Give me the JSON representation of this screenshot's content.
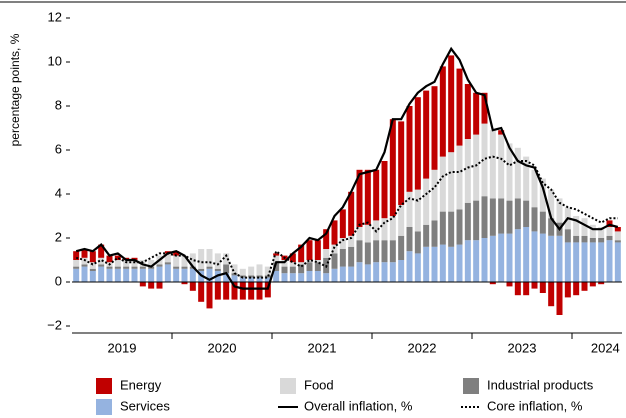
{
  "chart_data": {
    "type": "bar",
    "y_label": "percentage points, %",
    "categories": [
      null,
      null,
      null,
      null,
      null,
      "2019",
      null,
      null,
      null,
      null,
      null,
      null,
      null,
      null,
      null,
      null,
      null,
      "2020",
      null,
      null,
      null,
      null,
      null,
      null,
      null,
      null,
      null,
      null,
      null,
      "2021",
      null,
      null,
      null,
      null,
      null,
      null,
      null,
      null,
      null,
      null,
      null,
      "2022",
      null,
      null,
      null,
      null,
      null,
      null,
      null,
      null,
      null,
      null,
      null,
      "2023",
      null,
      null,
      null,
      null,
      null,
      null,
      null,
      null,
      null,
      "2024",
      null,
      null
    ],
    "ylim": [
      -2,
      12
    ],
    "yticks": [
      {
        "value": -2,
        "label": "−2"
      },
      0,
      2,
      4,
      6,
      8,
      10,
      12
    ],
    "series": [
      {
        "name": "Services",
        "type": "bar",
        "color": "#95b3e0",
        "values": [
          0.6,
          0.7,
          0.5,
          0.7,
          0.6,
          0.6,
          0.6,
          0.6,
          0.6,
          0.6,
          0.7,
          0.8,
          0.6,
          0.6,
          0.6,
          0.5,
          0.6,
          0.5,
          0.4,
          0.3,
          0.2,
          0.2,
          0.2,
          0.2,
          0.5,
          0.4,
          0.4,
          0.4,
          0.5,
          0.5,
          0.4,
          0.6,
          0.7,
          0.7,
          0.9,
          0.8,
          0.9,
          0.9,
          0.9,
          1.0,
          1.4,
          1.3,
          1.6,
          1.6,
          1.7,
          1.6,
          1.7,
          1.9,
          1.9,
          2.0,
          2.1,
          2.2,
          2.2,
          2.4,
          2.5,
          2.3,
          2.2,
          2.1,
          2.1,
          1.8,
          1.8,
          1.8,
          1.8,
          1.8,
          1.9,
          1.8
        ]
      },
      {
        "name": "Industrial products",
        "type": "bar",
        "color": "#7f7f7f",
        "values": [
          0.1,
          0.1,
          0.1,
          0.1,
          0.1,
          0.1,
          0.1,
          0.1,
          0.1,
          0.1,
          0.1,
          0.1,
          0.1,
          0.1,
          0.1,
          0.1,
          0.1,
          0.1,
          0.4,
          0.1,
          0.1,
          0.1,
          0.1,
          0.1,
          0.4,
          0.3,
          0.3,
          0.4,
          0.4,
          0.4,
          0.7,
          0.7,
          0.8,
          0.9,
          1.0,
          1.0,
          1.0,
          1.0,
          1.0,
          1.1,
          1.1,
          1.0,
          1.0,
          1.2,
          1.5,
          1.6,
          1.6,
          1.7,
          1.8,
          1.9,
          1.7,
          1.6,
          1.5,
          1.4,
          1.2,
          1.1,
          1.0,
          0.8,
          0.6,
          0.6,
          0.3,
          0.3,
          0.2,
          0.2,
          0.2,
          0.1
        ]
      },
      {
        "name": "Food",
        "type": "bar",
        "color": "#d9d9d9",
        "values": [
          0.3,
          0.3,
          0.3,
          0.3,
          0.2,
          0.3,
          0.3,
          0.3,
          0.3,
          0.3,
          0.4,
          0.4,
          0.5,
          0.5,
          0.6,
          0.9,
          0.8,
          0.7,
          0.5,
          0.4,
          0.3,
          0.4,
          0.5,
          0.4,
          0.3,
          0.3,
          0.2,
          0.1,
          0.1,
          0.1,
          0.4,
          0.4,
          0.5,
          0.5,
          0.6,
          0.8,
          0.9,
          1.0,
          1.1,
          1.4,
          1.6,
          1.9,
          2.1,
          2.3,
          2.5,
          2.7,
          2.9,
          2.9,
          3.0,
          3.3,
          3.1,
          2.9,
          2.6,
          2.3,
          2.0,
          1.7,
          1.5,
          1.3,
          1.1,
          1.0,
          0.9,
          0.8,
          0.6,
          0.5,
          0.4,
          0.4
        ]
      },
      {
        "name": "Energy",
        "type": "bar",
        "color": "#c00000",
        "values": [
          0.4,
          0.4,
          0.5,
          0.6,
          0.3,
          0.2,
          0.1,
          0.1,
          -0.2,
          -0.3,
          -0.3,
          0.1,
          0.2,
          -0.1,
          -0.4,
          -0.9,
          -1.2,
          -0.8,
          -0.8,
          -0.8,
          -0.8,
          -0.8,
          -0.8,
          -0.7,
          0.1,
          0.2,
          0.4,
          0.8,
          0.9,
          0.9,
          0.9,
          1.1,
          1.3,
          2.0,
          2.6,
          2.5,
          2.3,
          2.6,
          4.4,
          3.8,
          3.9,
          4.2,
          4.0,
          3.8,
          4.1,
          4.4,
          3.5,
          2.5,
          1.9,
          1.4,
          -0.1,
          0.2,
          -0.2,
          -0.6,
          -0.6,
          -0.3,
          -0.5,
          -1.1,
          -1.5,
          -0.7,
          -0.6,
          -0.4,
          -0.2,
          -0.1,
          0.3,
          0.2
        ]
      },
      {
        "name": "Overall inflation, %",
        "type": "line",
        "color": "#000000",
        "style": "solid",
        "values": [
          1.4,
          1.5,
          1.4,
          1.7,
          1.2,
          1.3,
          1.0,
          1.0,
          0.8,
          0.7,
          1.0,
          1.3,
          1.4,
          1.2,
          0.7,
          0.3,
          0.1,
          0.3,
          0.4,
          -0.2,
          -0.3,
          -0.3,
          -0.3,
          -0.3,
          0.9,
          0.9,
          1.3,
          1.6,
          2.0,
          1.9,
          2.2,
          3.0,
          3.4,
          4.1,
          4.9,
          5.0,
          5.1,
          5.9,
          7.4,
          7.4,
          8.1,
          8.6,
          8.9,
          9.1,
          9.9,
          10.6,
          10.1,
          9.2,
          8.6,
          8.5,
          6.9,
          7.0,
          6.1,
          5.5,
          5.3,
          5.2,
          4.3,
          2.9,
          2.4,
          2.9,
          2.8,
          2.6,
          2.4,
          2.4,
          2.6,
          2.5
        ]
      },
      {
        "name": "Core inflation, %",
        "type": "line",
        "color": "#000000",
        "style": "dotted",
        "values": [
          1.1,
          1.0,
          0.8,
          1.0,
          0.8,
          1.1,
          0.9,
          0.9,
          0.9,
          1.1,
          1.3,
          1.3,
          1.2,
          1.2,
          1.0,
          0.9,
          0.9,
          0.8,
          1.2,
          0.4,
          0.2,
          0.2,
          0.2,
          0.2,
          1.4,
          1.1,
          0.9,
          0.7,
          1.0,
          0.9,
          0.7,
          1.6,
          1.9,
          2.0,
          2.6,
          2.7,
          2.3,
          2.7,
          2.9,
          3.5,
          3.8,
          3.7,
          4.0,
          4.3,
          4.8,
          5.0,
          5.0,
          5.2,
          5.3,
          5.6,
          5.7,
          5.6,
          5.3,
          5.5,
          5.5,
          5.3,
          4.5,
          4.2,
          3.6,
          3.4,
          3.3,
          3.1,
          2.9,
          2.7,
          2.9,
          2.9
        ]
      }
    ]
  }
}
